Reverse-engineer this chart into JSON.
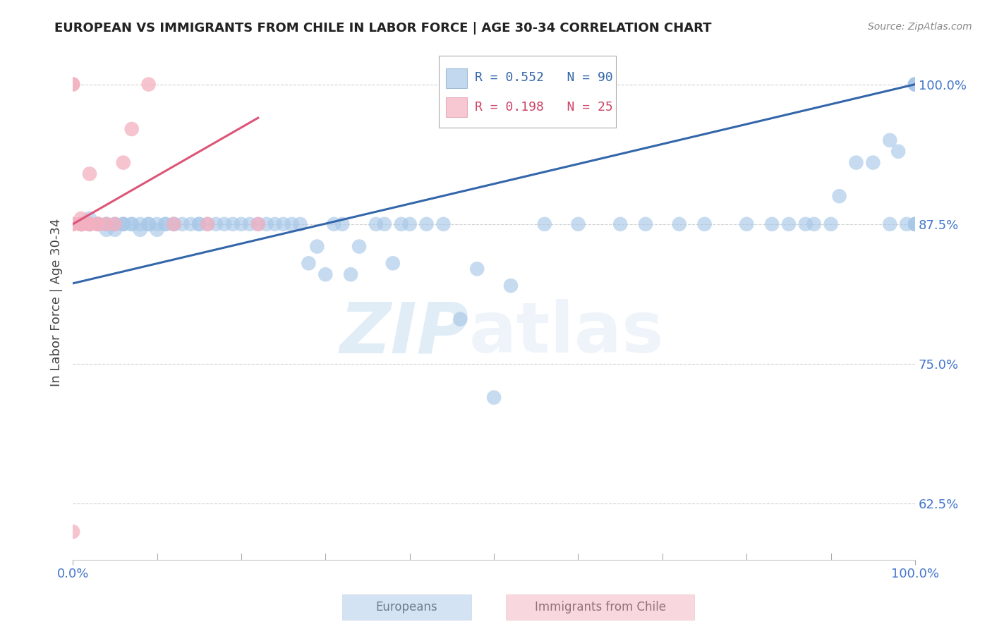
{
  "title": "EUROPEAN VS IMMIGRANTS FROM CHILE IN LABOR FORCE | AGE 30-34 CORRELATION CHART",
  "source": "Source: ZipAtlas.com",
  "xlabel": "",
  "ylabel": "In Labor Force | Age 30-34",
  "xlim": [
    0.0,
    1.0
  ],
  "ylim": [
    0.575,
    1.035
  ],
  "yticks": [
    0.625,
    0.75,
    0.875,
    1.0
  ],
  "ytick_labels": [
    "62.5%",
    "75.0%",
    "87.5%",
    "100.0%"
  ],
  "xtick_labels": [
    "0.0%",
    "100.0%"
  ],
  "watermark_zip": "ZIP",
  "watermark_atlas": "atlas",
  "blue_R": 0.552,
  "blue_N": 90,
  "pink_R": 0.198,
  "pink_N": 25,
  "blue_color": "#a8c8e8",
  "pink_color": "#f4b0c0",
  "blue_line_color": "#3366aa",
  "pink_line_color": "#dd5577",
  "legend_blue_label": "Europeans",
  "legend_pink_label": "Immigrants from Chile",
  "blue_scatter_x": [
    0.01,
    0.01,
    0.02,
    0.02,
    0.02,
    0.02,
    0.03,
    0.03,
    0.03,
    0.04,
    0.04,
    0.04,
    0.05,
    0.05,
    0.05,
    0.06,
    0.06,
    0.06,
    0.07,
    0.07,
    0.08,
    0.08,
    0.09,
    0.09,
    0.1,
    0.1,
    0.11,
    0.11,
    0.12,
    0.12,
    0.13,
    0.14,
    0.15,
    0.15,
    0.16,
    0.17,
    0.18,
    0.19,
    0.2,
    0.21,
    0.22,
    0.23,
    0.24,
    0.25,
    0.26,
    0.27,
    0.28,
    0.29,
    0.3,
    0.31,
    0.32,
    0.33,
    0.34,
    0.36,
    0.37,
    0.38,
    0.39,
    0.4,
    0.42,
    0.44,
    0.46,
    0.48,
    0.5,
    0.52,
    0.56,
    0.6,
    0.65,
    0.68,
    0.72,
    0.75,
    0.8,
    0.83,
    0.85,
    0.87,
    0.88,
    0.9,
    0.91,
    0.93,
    0.95,
    0.97,
    0.97,
    0.98,
    0.99,
    1.0,
    1.0,
    1.0,
    1.0,
    1.0,
    1.0,
    1.0
  ],
  "blue_scatter_y": [
    0.875,
    0.875,
    0.875,
    0.88,
    0.875,
    0.875,
    0.875,
    0.875,
    0.875,
    0.875,
    0.875,
    0.87,
    0.875,
    0.875,
    0.87,
    0.875,
    0.875,
    0.875,
    0.875,
    0.875,
    0.875,
    0.87,
    0.875,
    0.875,
    0.875,
    0.87,
    0.875,
    0.875,
    0.875,
    0.875,
    0.875,
    0.875,
    0.875,
    0.875,
    0.875,
    0.875,
    0.875,
    0.875,
    0.875,
    0.875,
    0.875,
    0.875,
    0.875,
    0.875,
    0.875,
    0.875,
    0.84,
    0.855,
    0.83,
    0.875,
    0.875,
    0.83,
    0.855,
    0.875,
    0.875,
    0.84,
    0.875,
    0.875,
    0.875,
    0.875,
    0.79,
    0.835,
    0.72,
    0.82,
    0.875,
    0.875,
    0.875,
    0.875,
    0.875,
    0.875,
    0.875,
    0.875,
    0.875,
    0.875,
    0.875,
    0.875,
    0.9,
    0.93,
    0.93,
    0.875,
    0.95,
    0.94,
    0.875,
    0.875,
    0.875,
    0.875,
    1.0,
    1.0,
    1.0,
    1.0
  ],
  "pink_scatter_x": [
    0.0,
    0.0,
    0.0,
    0.01,
    0.01,
    0.01,
    0.01,
    0.01,
    0.02,
    0.02,
    0.02,
    0.03,
    0.04,
    0.05,
    0.06,
    0.07,
    0.09,
    0.12,
    0.16,
    0.22,
    0.0,
    0.0,
    0.01,
    0.02,
    0.03
  ],
  "pink_scatter_y": [
    1.0,
    1.0,
    0.875,
    0.875,
    0.875,
    0.875,
    0.875,
    0.875,
    0.875,
    0.875,
    0.875,
    0.875,
    0.875,
    0.875,
    0.93,
    0.96,
    1.0,
    0.875,
    0.875,
    0.875,
    0.875,
    0.6,
    0.88,
    0.92,
    0.875
  ]
}
